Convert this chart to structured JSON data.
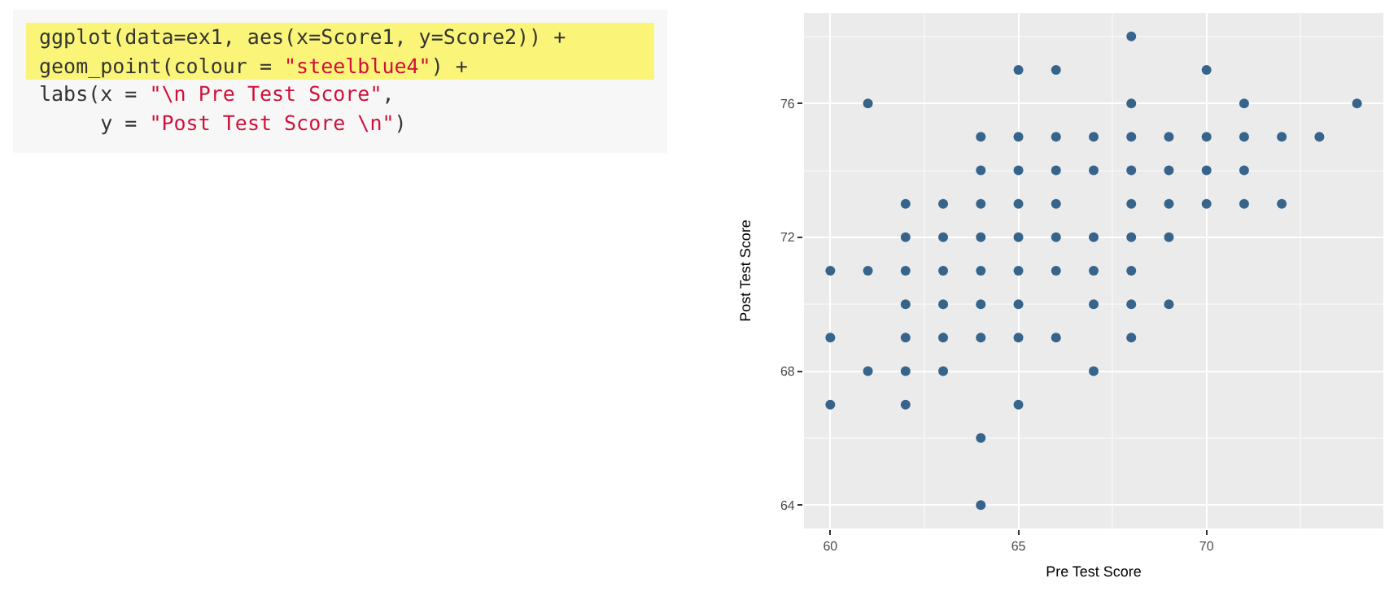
{
  "chart_data": {
    "type": "scatter",
    "xlabel": "Pre Test Score",
    "ylabel": "Post Test Score",
    "annotations": [
      "ggplot(data=ex1, aes(x=Score1, y=Score2)) +",
      "geom_point(colour = \"steelblue4\") +",
      "labs(x = \"\\n Pre Test Score\",",
      "     y = \"Post Test Score \\n\")"
    ],
    "x": [
      68,
      65,
      66,
      70,
      61,
      68,
      71,
      74,
      64,
      65,
      66,
      67,
      68,
      69,
      70,
      71,
      72,
      73,
      64,
      65,
      66,
      67,
      68,
      69,
      70,
      71,
      62,
      63,
      64,
      65,
      66,
      68,
      69,
      70,
      71,
      72,
      62,
      63,
      64,
      65,
      66,
      67,
      68,
      69,
      60,
      61,
      62,
      63,
      64,
      65,
      66,
      67,
      68,
      62,
      63,
      64,
      65,
      67,
      68,
      69,
      60,
      62,
      63,
      64,
      65,
      66,
      68,
      61,
      62,
      63,
      67,
      60,
      62,
      65,
      64,
      64
    ],
    "values": [
      78,
      77,
      77,
      77,
      76,
      76,
      76,
      76,
      75,
      75,
      75,
      75,
      75,
      75,
      75,
      75,
      75,
      75,
      74,
      74,
      74,
      74,
      74,
      74,
      74,
      74,
      73,
      73,
      73,
      73,
      73,
      73,
      73,
      73,
      73,
      73,
      72,
      72,
      72,
      72,
      72,
      72,
      72,
      72,
      71,
      71,
      71,
      71,
      71,
      71,
      71,
      71,
      71,
      70,
      70,
      70,
      70,
      70,
      70,
      70,
      69,
      69,
      69,
      69,
      69,
      69,
      69,
      68,
      68,
      68,
      68,
      67,
      67,
      67,
      66,
      64
    ],
    "color": "#36648b",
    "marker": "circle",
    "grid": true,
    "xlim": [
      59.3,
      74.7
    ],
    "xticks": [
      60,
      65,
      70
    ],
    "ylim": [
      63.3,
      78.7
    ],
    "yticks": [
      64,
      68,
      72,
      76
    ]
  }
}
